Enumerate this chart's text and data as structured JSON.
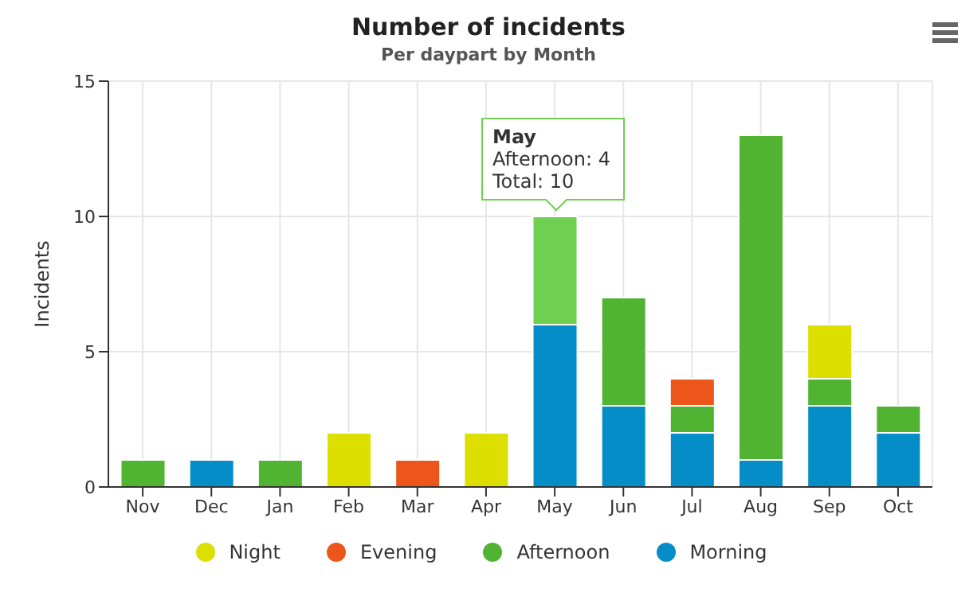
{
  "chart_data": {
    "type": "bar",
    "title": "Number of incidents",
    "subtitle": "Per daypart by Month",
    "ylabel": "Incidents",
    "categories": [
      "Nov",
      "Dec",
      "Jan",
      "Feb",
      "Mar",
      "Apr",
      "May",
      "Jun",
      "Jul",
      "Aug",
      "Sep",
      "Oct"
    ],
    "series": [
      {
        "name": "Morning",
        "color": "#058dc7",
        "values": [
          0,
          1,
          0,
          0,
          0,
          0,
          6,
          3,
          2,
          1,
          3,
          2
        ]
      },
      {
        "name": "Afternoon",
        "color": "#50b432",
        "colors": [
          "#50b432",
          "#50b432",
          "#50b432",
          "#50b432",
          "#50b432",
          "#50b432",
          "#6fcf50",
          "#50b432",
          "#50b432",
          "#50b432",
          "#50b432",
          "#50b432"
        ],
        "values": [
          1,
          0,
          1,
          0,
          0,
          0,
          4,
          4,
          1,
          12,
          1,
          1
        ]
      },
      {
        "name": "Evening",
        "color": "#ed561b",
        "values": [
          0,
          0,
          0,
          0,
          1,
          0,
          0,
          0,
          1,
          0,
          0,
          0
        ]
      },
      {
        "name": "Night",
        "color": "#dddf00",
        "values": [
          0,
          0,
          0,
          2,
          0,
          2,
          0,
          0,
          0,
          0,
          2,
          0
        ]
      }
    ],
    "stacked": true,
    "ylim": [
      0,
      15
    ],
    "yticks": [
      0,
      5,
      10,
      15
    ],
    "grid": true,
    "legend": "bottom",
    "annotations": [
      "May\nAfternoon: 4\nTotal: 10"
    ]
  }
}
